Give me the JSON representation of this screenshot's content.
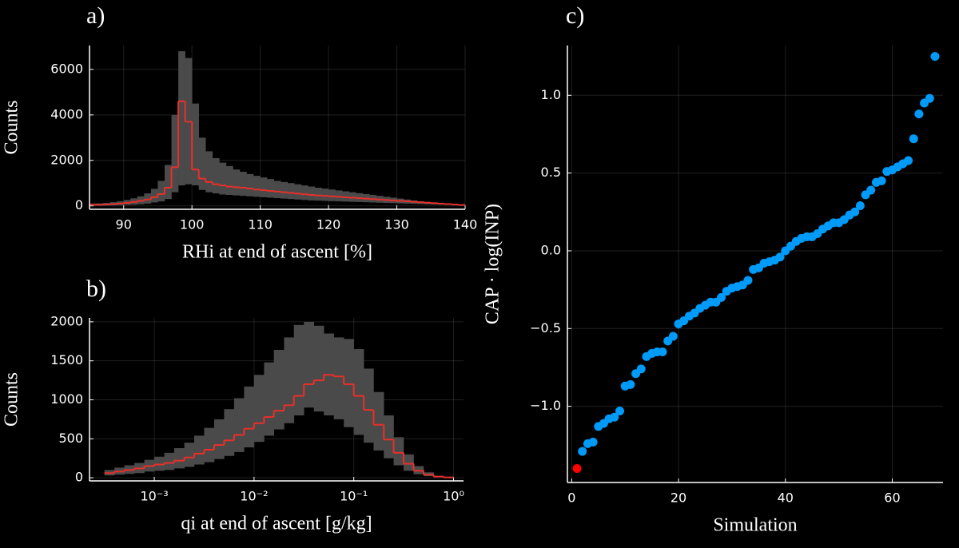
{
  "chart_data": [
    {
      "type": "histogram",
      "title": "a)",
      "x_label": "RHi at end of ascent [%]",
      "y_label": "Counts",
      "bins": [
        85,
        86,
        87,
        88,
        89,
        90,
        91,
        92,
        93,
        94,
        95,
        96,
        97,
        98,
        99,
        100,
        101,
        102,
        103,
        104,
        105,
        106,
        107,
        108,
        109,
        110,
        111,
        112,
        113,
        114,
        115,
        116,
        117,
        118,
        119,
        120,
        121,
        122,
        123,
        124,
        125,
        126,
        127,
        128,
        129,
        130,
        131,
        132,
        133,
        134,
        135,
        136,
        137,
        138,
        139,
        140
      ],
      "values": [
        50,
        50,
        60,
        80,
        100,
        130,
        170,
        220,
        280,
        380,
        520,
        800,
        1700,
        4600,
        3700,
        1600,
        1200,
        1050,
        950,
        900,
        850,
        820,
        800,
        760,
        720,
        690,
        660,
        630,
        600,
        570,
        540,
        510,
        480,
        460,
        440,
        420,
        400,
        380,
        360,
        340,
        320,
        300,
        280,
        260,
        240,
        220,
        200,
        180,
        160,
        140,
        120,
        100,
        80,
        60,
        40
      ],
      "band_low": [
        10,
        10,
        15,
        20,
        30,
        40,
        50,
        70,
        100,
        150,
        200,
        300,
        600,
        900,
        950,
        900,
        700,
        600,
        550,
        500,
        480,
        460,
        440,
        420,
        400,
        380,
        360,
        340,
        320,
        300,
        280,
        260,
        240,
        230,
        220,
        210,
        200,
        190,
        180,
        170,
        160,
        150,
        140,
        130,
        120,
        110,
        100,
        90,
        80,
        70,
        60,
        50,
        40,
        30,
        20
      ],
      "band_high": [
        100,
        110,
        130,
        160,
        200,
        260,
        330,
        420,
        550,
        750,
        1100,
        1800,
        4000,
        6800,
        6500,
        4500,
        3000,
        2400,
        2100,
        1900,
        1750,
        1600,
        1500,
        1400,
        1320,
        1250,
        1180,
        1100,
        1050,
        1000,
        950,
        900,
        850,
        800,
        760,
        720,
        680,
        640,
        600,
        560,
        520,
        480,
        440,
        400,
        360,
        320,
        280,
        240,
        200,
        170,
        140,
        110,
        80,
        60,
        40
      ],
      "color": "#e8302a",
      "band_color": "#4a4a4a",
      "xlim": [
        85,
        140
      ],
      "ylim": [
        -150,
        7050
      ],
      "xticks": [
        90,
        100,
        110,
        120,
        130,
        140
      ],
      "yticks": [
        0,
        2000,
        4000,
        6000
      ],
      "grid": true
    },
    {
      "type": "histogram",
      "title": "b)",
      "x_label": "qi at end of ascent [g/kg]",
      "y_label": "Counts",
      "xlog": true,
      "bins": [
        0.000316,
        0.000398,
        0.000501,
        0.000631,
        0.000794,
        0.001,
        0.00126,
        0.00158,
        0.002,
        0.00251,
        0.00316,
        0.00398,
        0.00501,
        0.00631,
        0.00794,
        0.01,
        0.0126,
        0.0158,
        0.02,
        0.0251,
        0.0316,
        0.0398,
        0.0501,
        0.0631,
        0.0794,
        0.1,
        0.126,
        0.158,
        0.2,
        0.251,
        0.316,
        0.398,
        0.501,
        0.631,
        0.794,
        1
      ],
      "values": [
        60,
        80,
        100,
        120,
        150,
        170,
        190,
        220,
        260,
        310,
        360,
        420,
        480,
        550,
        630,
        700,
        780,
        860,
        930,
        1050,
        1200,
        1250,
        1320,
        1300,
        1200,
        1050,
        870,
        680,
        490,
        320,
        180,
        90,
        40,
        15,
        5
      ],
      "band_low": [
        30,
        40,
        50,
        60,
        80,
        90,
        100,
        120,
        140,
        170,
        200,
        240,
        280,
        330,
        390,
        460,
        540,
        620,
        700,
        800,
        900,
        850,
        800,
        750,
        650,
        550,
        450,
        350,
        250,
        160,
        90,
        45,
        20,
        8,
        2
      ],
      "band_high": [
        100,
        130,
        160,
        190,
        230,
        270,
        320,
        380,
        450,
        540,
        640,
        750,
        880,
        1020,
        1170,
        1320,
        1480,
        1640,
        1800,
        1960,
        2000,
        1950,
        1850,
        1800,
        1780,
        1650,
        1400,
        1100,
        800,
        520,
        300,
        150,
        70,
        25,
        8
      ],
      "color": "#e8302a",
      "band_color": "#4a4a4a",
      "xlim": [
        0.000224,
        1.26
      ],
      "ylim": [
        -40,
        2050
      ],
      "xticks": [
        {
          "value": 0.001,
          "label": "10⁻³"
        },
        {
          "value": 0.01,
          "label": "10⁻²"
        },
        {
          "value": 0.1,
          "label": "10⁻¹"
        },
        {
          "value": 1,
          "label": "10⁰"
        }
      ],
      "yticks": [
        0,
        500,
        1000,
        1500,
        2000
      ],
      "grid": true
    },
    {
      "type": "scatter",
      "title": "c)",
      "x_label": "Simulation",
      "y_label": "CAP · log(INP)",
      "series": [
        {
          "color": "#ff0000",
          "x": [
            1
          ],
          "values": [
            -1.4
          ]
        },
        {
          "color": "#009af9",
          "x": [
            2,
            3,
            4,
            5,
            6,
            7,
            8,
            9,
            10,
            11,
            12,
            13,
            14,
            15,
            16,
            17,
            18,
            19,
            20,
            21,
            22,
            23,
            24,
            25,
            26,
            27,
            28,
            29,
            30,
            31,
            32,
            33,
            34,
            35,
            36,
            37,
            38,
            39,
            40,
            41,
            42,
            43,
            44,
            45,
            46,
            47,
            48,
            49,
            50,
            51,
            52,
            53,
            54,
            55,
            56,
            57,
            58,
            59,
            60,
            61,
            62,
            63,
            64,
            65,
            66,
            67,
            68
          ],
          "values": [
            -1.29,
            -1.24,
            -1.23,
            -1.13,
            -1.11,
            -1.08,
            -1.07,
            -1.03,
            -0.87,
            -0.86,
            -0.79,
            -0.76,
            -0.68,
            -0.66,
            -0.65,
            -0.65,
            -0.58,
            -0.55,
            -0.47,
            -0.45,
            -0.42,
            -0.4,
            -0.37,
            -0.35,
            -0.33,
            -0.33,
            -0.3,
            -0.26,
            -0.24,
            -0.23,
            -0.22,
            -0.19,
            -0.12,
            -0.11,
            -0.08,
            -0.07,
            -0.06,
            -0.04,
            0.0,
            0.03,
            0.06,
            0.08,
            0.09,
            0.09,
            0.11,
            0.14,
            0.16,
            0.18,
            0.18,
            0.2,
            0.23,
            0.25,
            0.29,
            0.36,
            0.39,
            0.44,
            0.45,
            0.51,
            0.52,
            0.54,
            0.56,
            0.58,
            0.72,
            0.88,
            0.95,
            0.98,
            1.25
          ]
        }
      ],
      "xlim": [
        -0.8,
        69.5
      ],
      "ylim": [
        -1.49,
        1.32
      ],
      "xticks": [
        0,
        20,
        40,
        60
      ],
      "yticks": [
        {
          "value": -1,
          "label": "−1.0"
        },
        {
          "value": -0.5,
          "label": "−0.5"
        },
        {
          "value": 0,
          "label": "0.0"
        },
        0.5,
        {
          "value": 1,
          "label": "1.0"
        }
      ],
      "grid": true
    }
  ]
}
